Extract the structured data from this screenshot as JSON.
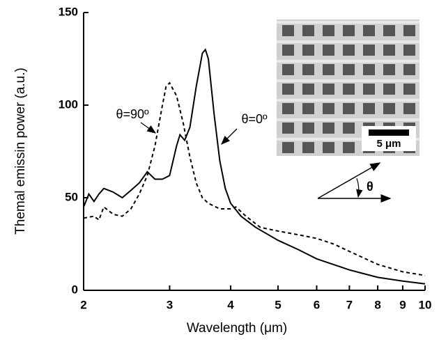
{
  "chart_data": {
    "type": "line",
    "xlabel": "Wavelength (μm)",
    "ylabel": "Themal emissin power (a.u.)",
    "xscale": "log",
    "xlim": [
      2,
      10
    ],
    "xticks": [
      2,
      3,
      4,
      5,
      6,
      7,
      8,
      9,
      10
    ],
    "ylim": [
      0,
      150
    ],
    "yticks": [
      0,
      50,
      100,
      150
    ],
    "series": [
      {
        "name": "θ=0º",
        "color": "#000000",
        "dash": "solid",
        "x": [
          2.0,
          2.05,
          2.1,
          2.15,
          2.2,
          2.3,
          2.4,
          2.5,
          2.6,
          2.7,
          2.8,
          2.9,
          3.0,
          3.1,
          3.15,
          3.22,
          3.3,
          3.4,
          3.5,
          3.55,
          3.6,
          3.7,
          3.8,
          3.9,
          4.0,
          4.2,
          4.5,
          5.0,
          5.5,
          6.0,
          7.0,
          8.0,
          9.0,
          10.0
        ],
        "values": [
          45,
          52,
          48,
          52,
          55,
          53,
          50,
          54,
          58,
          64,
          60,
          60,
          62,
          78,
          84,
          81,
          88,
          110,
          128,
          130,
          125,
          95,
          70,
          55,
          47,
          40,
          34,
          27,
          22,
          17,
          11,
          7,
          5,
          3.5
        ]
      },
      {
        "name": "θ=90º",
        "color": "#000000",
        "dash": "dashed",
        "x": [
          2.0,
          2.1,
          2.15,
          2.2,
          2.3,
          2.4,
          2.5,
          2.6,
          2.7,
          2.8,
          2.9,
          2.95,
          3.0,
          3.1,
          3.2,
          3.3,
          3.4,
          3.5,
          3.6,
          3.8,
          4.0,
          4.1,
          4.3,
          4.6,
          5.0,
          5.5,
          6.0,
          6.5,
          7.0,
          8.0,
          9.0,
          10.0
        ],
        "values": [
          39,
          40,
          38,
          45,
          41,
          40,
          44,
          52,
          62,
          78,
          100,
          110,
          112,
          105,
          90,
          72,
          58,
          50,
          47,
          44,
          44,
          45,
          40,
          34,
          32,
          30,
          28,
          25,
          21,
          14,
          10,
          8
        ]
      }
    ],
    "annotations": [
      "θ=90º",
      "θ=0º"
    ],
    "inset": {
      "scale_bar": "5 μm",
      "angle_label": "θ"
    }
  }
}
